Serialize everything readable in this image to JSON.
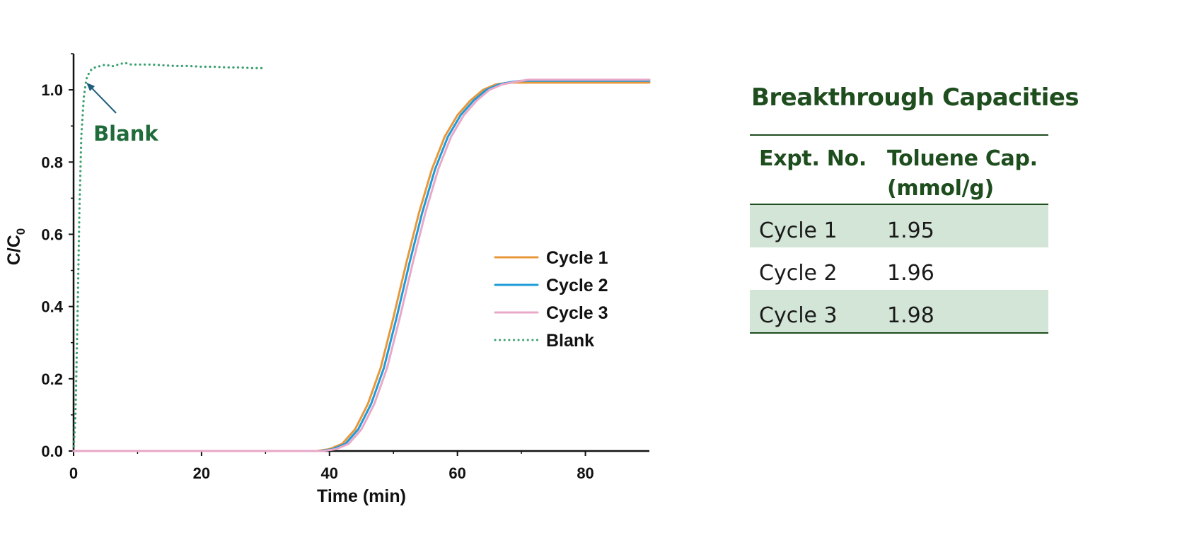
{
  "colors": {
    "cycle1": "#E8973A",
    "cycle2": "#1E9BD7",
    "cycle3": "#E8A8C8",
    "blank": "#3AA070",
    "axis": "#111111",
    "arrow": "#1F5E7E",
    "annotation_text": "#1F6B3A",
    "table_title": "#1E4D1E",
    "table_text": "#1A1A1A",
    "table_rule": "#1E4D1E",
    "row_shade": "#D3E5D6"
  },
  "chart_data": {
    "type": "line",
    "xlabel": "Time (min)",
    "ylabel_main": "C/C",
    "ylabel_sub": "0",
    "xlim": [
      0,
      90
    ],
    "ylim": [
      0,
      1.1
    ],
    "xticks": [
      "0",
      "20",
      "40",
      "60",
      "80"
    ],
    "yticks": [
      "0.0",
      "0.2",
      "0.4",
      "0.6",
      "0.8",
      "1.0"
    ],
    "grid": false,
    "legend_position": "center-right",
    "annotation": {
      "text": "Blank",
      "x": 2,
      "y": 1.02
    },
    "series": [
      {
        "name": "Cycle 1",
        "style": "solid",
        "color_key": "cycle1",
        "points": [
          [
            0,
            0
          ],
          [
            38,
            0
          ],
          [
            40,
            0.005
          ],
          [
            42,
            0.02
          ],
          [
            44,
            0.06
          ],
          [
            46,
            0.13
          ],
          [
            48,
            0.23
          ],
          [
            50,
            0.37
          ],
          [
            52,
            0.52
          ],
          [
            54,
            0.66
          ],
          [
            56,
            0.78
          ],
          [
            58,
            0.87
          ],
          [
            60,
            0.93
          ],
          [
            62,
            0.97
          ],
          [
            64,
            1.0
          ],
          [
            66,
            1.015
          ],
          [
            68,
            1.02
          ],
          [
            70,
            1.02
          ],
          [
            75,
            1.02
          ],
          [
            80,
            1.02
          ],
          [
            85,
            1.02
          ],
          [
            90,
            1.02
          ]
        ]
      },
      {
        "name": "Cycle 2",
        "style": "solid",
        "color_key": "cycle2",
        "points": [
          [
            0,
            0
          ],
          [
            38.5,
            0
          ],
          [
            40.5,
            0.005
          ],
          [
            42.5,
            0.02
          ],
          [
            44.5,
            0.06
          ],
          [
            46.5,
            0.13
          ],
          [
            48.5,
            0.23
          ],
          [
            50.5,
            0.37
          ],
          [
            52.5,
            0.52
          ],
          [
            54.5,
            0.66
          ],
          [
            56.5,
            0.78
          ],
          [
            58.5,
            0.87
          ],
          [
            60.5,
            0.93
          ],
          [
            62.5,
            0.97
          ],
          [
            64.5,
            1.0
          ],
          [
            66.5,
            1.015
          ],
          [
            68.5,
            1.022
          ],
          [
            70,
            1.025
          ],
          [
            75,
            1.025
          ],
          [
            80,
            1.025
          ],
          [
            85,
            1.025
          ],
          [
            90,
            1.025
          ]
        ]
      },
      {
        "name": "Cycle 3",
        "style": "solid",
        "color_key": "cycle3",
        "points": [
          [
            0,
            0
          ],
          [
            39,
            0
          ],
          [
            41,
            0.005
          ],
          [
            43,
            0.02
          ],
          [
            45,
            0.06
          ],
          [
            47,
            0.13
          ],
          [
            49,
            0.23
          ],
          [
            51,
            0.37
          ],
          [
            53,
            0.52
          ],
          [
            55,
            0.66
          ],
          [
            57,
            0.78
          ],
          [
            59,
            0.87
          ],
          [
            61,
            0.93
          ],
          [
            63,
            0.97
          ],
          [
            65,
            1.0
          ],
          [
            67,
            1.015
          ],
          [
            69,
            1.022
          ],
          [
            71,
            1.028
          ],
          [
            75,
            1.028
          ],
          [
            80,
            1.028
          ],
          [
            85,
            1.028
          ],
          [
            90,
            1.028
          ]
        ]
      },
      {
        "name": "Blank",
        "style": "dotted",
        "color_key": "blank",
        "points": [
          [
            0,
            0
          ],
          [
            0.3,
            0.1
          ],
          [
            0.6,
            0.35
          ],
          [
            0.9,
            0.65
          ],
          [
            1.2,
            0.87
          ],
          [
            1.6,
            0.98
          ],
          [
            2,
            1.03
          ],
          [
            2.5,
            1.05
          ],
          [
            3,
            1.06
          ],
          [
            4,
            1.065
          ],
          [
            5,
            1.07
          ],
          [
            6,
            1.065
          ],
          [
            7,
            1.07
          ],
          [
            8,
            1.075
          ],
          [
            9,
            1.07
          ],
          [
            10,
            1.07
          ],
          [
            12,
            1.07
          ],
          [
            14,
            1.068
          ],
          [
            16,
            1.066
          ],
          [
            18,
            1.066
          ],
          [
            20,
            1.064
          ],
          [
            22,
            1.064
          ],
          [
            24,
            1.062
          ],
          [
            26,
            1.062
          ],
          [
            28,
            1.06
          ],
          [
            30,
            1.06
          ]
        ]
      }
    ]
  },
  "table": {
    "title": "Breakthrough Capacities",
    "headers": [
      "Expt. No.",
      "Toluene Cap. (mmol/g)"
    ],
    "rows": [
      {
        "expt": "Cycle 1",
        "cap": "1.95",
        "shaded": true
      },
      {
        "expt": "Cycle 2",
        "cap": "1.96",
        "shaded": false
      },
      {
        "expt": "Cycle 3",
        "cap": "1.98",
        "shaded": true
      }
    ]
  }
}
